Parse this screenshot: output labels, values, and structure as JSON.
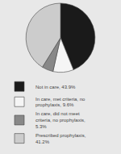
{
  "chart_data": {
    "type": "pie",
    "categories": [
      "Not in care, 43.9%",
      "In care, met criteria, no prophylaxis, 9.6%",
      "In care, did not meet criteria, no prophylaxis, 5.3%",
      "Prescribed prophylaxis, 41.2%"
    ],
    "values": [
      43.9,
      9.6,
      5.3,
      41.2
    ],
    "colors": [
      "#1a1a1a",
      "#f5f5f5",
      "#888888",
      "#cccccc"
    ],
    "legend": "bottom"
  }
}
